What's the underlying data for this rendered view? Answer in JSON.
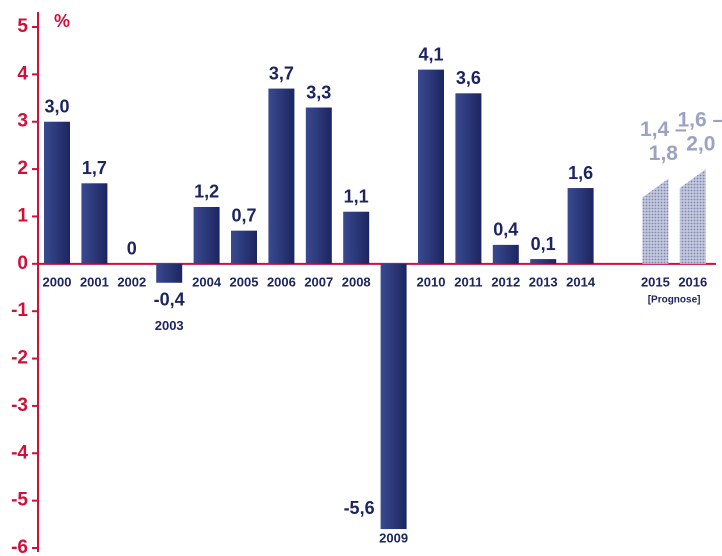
{
  "chart_data": {
    "type": "bar",
    "y_unit_label": "%",
    "categories": [
      "2000",
      "2001",
      "2002",
      "2003",
      "2004",
      "2005",
      "2006",
      "2007",
      "2008",
      "2009",
      "2010",
      "2011",
      "2012",
      "2013",
      "2014"
    ],
    "values": [
      3.0,
      1.7,
      0,
      -0.4,
      1.2,
      0.7,
      3.7,
      3.3,
      1.1,
      -5.6,
      4.1,
      3.6,
      0.4,
      0.1,
      1.6
    ],
    "value_labels": [
      "3,0",
      "1,7",
      "0",
      "-0,4",
      "1,2",
      "0,7",
      "3,7",
      "3,3",
      "1,1",
      "-5,6",
      "4,1",
      "3,6",
      "0,4",
      "0,1",
      "1,6"
    ],
    "color": "#27357a",
    "forecast": {
      "categories": [
        "2015",
        "2016"
      ],
      "low": [
        1.4,
        1.6
      ],
      "high": [
        1.8,
        2.0
      ],
      "low_labels": [
        "1,4 –",
        "1,6 –"
      ],
      "high_labels": [
        "1,8",
        "2,0"
      ],
      "label": "[Prognose]",
      "color": "#9aa3c4"
    },
    "ylim": [
      -6,
      5
    ],
    "yticks": [
      5,
      4,
      3,
      2,
      1,
      0,
      -1,
      -2,
      -3,
      -4,
      -5,
      -6
    ],
    "grid": false
  }
}
